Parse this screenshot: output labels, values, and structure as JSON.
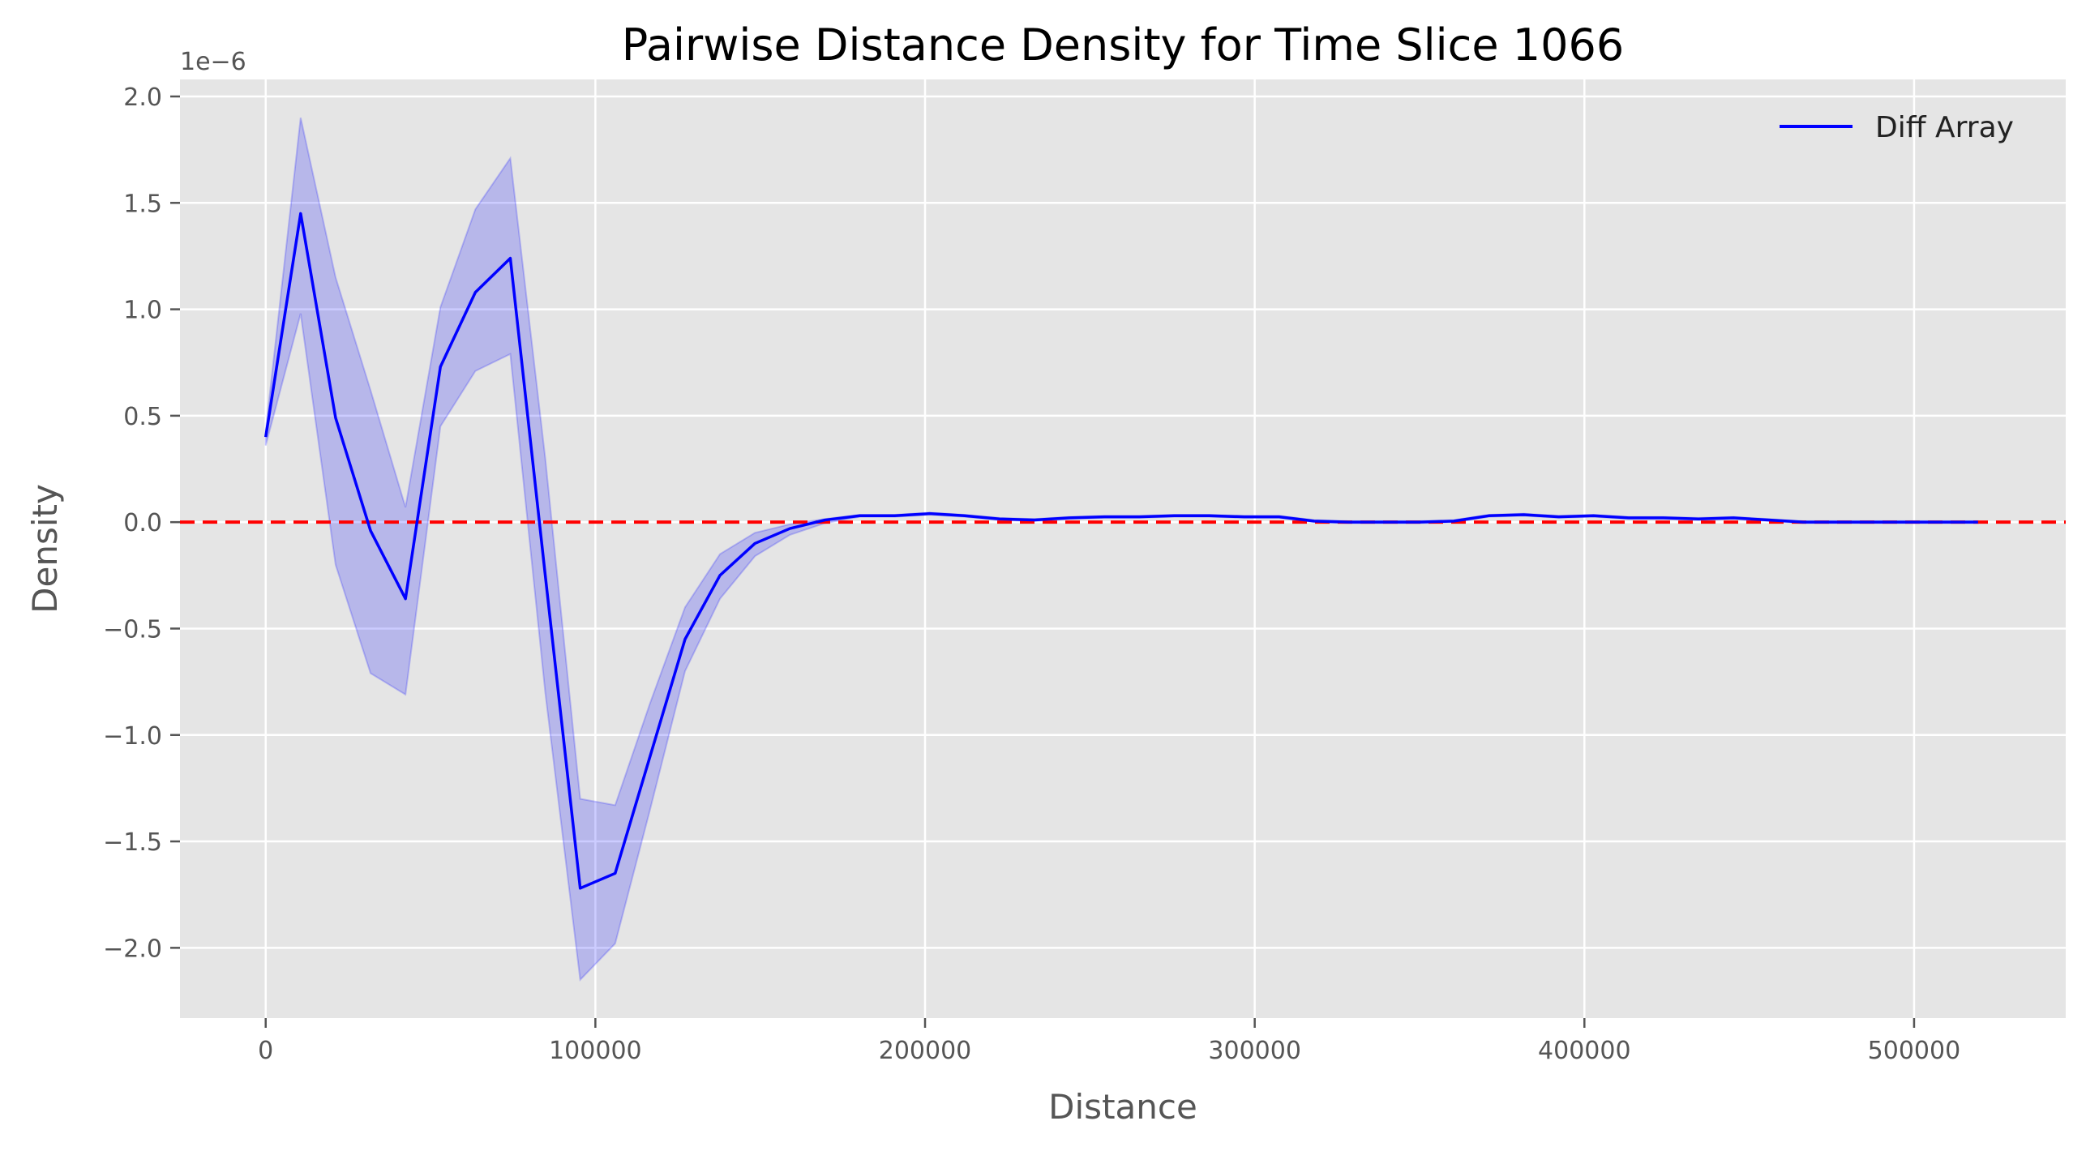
{
  "chart_data": {
    "type": "line",
    "title": "Pairwise Distance Density for Time Slice 1066",
    "xlabel": "Distance",
    "ylabel": "Density",
    "y_offset_label": "1e−6",
    "xlim": [
      -26000,
      546000
    ],
    "ylim": [
      -2.33,
      2.08
    ],
    "x_ticks": [
      0,
      100000,
      200000,
      300000,
      400000,
      500000
    ],
    "x_tick_labels": [
      "0",
      "100000",
      "200000",
      "300000",
      "400000",
      "500000"
    ],
    "y_ticks": [
      2.0,
      1.5,
      1.0,
      0.5,
      0.0,
      -0.5,
      -1.0,
      -1.5,
      -2.0
    ],
    "y_tick_labels": [
      "2.0",
      "1.5",
      "1.0",
      "0.5",
      "0.0",
      "−0.5",
      "−1.0",
      "−1.5",
      "−2.0"
    ],
    "grid": true,
    "legend": {
      "position": "top-right",
      "entries": [
        "Diff Array"
      ]
    },
    "reference_line": {
      "y": 0,
      "style": "dashed",
      "color": "#ff0000"
    },
    "series": [
      {
        "name": "Diff Array",
        "color": "#0000ff",
        "x": [
          0,
          10600,
          21200,
          31800,
          42400,
          53000,
          63600,
          74200,
          84800,
          95400,
          106000,
          116600,
          127200,
          137800,
          148400,
          159000,
          169600,
          180200,
          190800,
          201400,
          212000,
          222600,
          233200,
          243800,
          254400,
          265000,
          275600,
          286200,
          296800,
          307400,
          318000,
          328600,
          339200,
          349800,
          360400,
          371000,
          381600,
          392200,
          402800,
          413400,
          424000,
          434600,
          445200,
          455800,
          466400,
          477000,
          487600,
          498200,
          508800,
          519400
        ],
        "y": [
          0.4,
          1.45,
          0.49,
          -0.04,
          -0.36,
          0.73,
          1.08,
          1.24,
          -0.25,
          -1.72,
          -1.65,
          -1.1,
          -0.55,
          -0.25,
          -0.1,
          -0.03,
          0.01,
          0.03,
          0.03,
          0.04,
          0.03,
          0.015,
          0.01,
          0.02,
          0.025,
          0.025,
          0.03,
          0.03,
          0.025,
          0.025,
          0.005,
          0.0,
          0.0,
          0.0,
          0.005,
          0.03,
          0.035,
          0.025,
          0.03,
          0.02,
          0.02,
          0.015,
          0.02,
          0.01,
          0.0,
          0.0,
          0.0,
          0.0,
          0.0,
          0.0
        ],
        "band_upper": [
          0.43,
          1.9,
          1.15,
          0.62,
          0.07,
          1.01,
          1.47,
          1.71,
          0.3,
          -1.3,
          -1.33,
          -0.85,
          -0.4,
          -0.15,
          -0.05,
          -0.01,
          0.015,
          0.035,
          0.035,
          0.045,
          0.035,
          0.02,
          0.015,
          0.025,
          0.03,
          0.03,
          0.035,
          0.035,
          0.03,
          0.03,
          0.01,
          0.005,
          0.005,
          0.005,
          0.01,
          0.035,
          0.04,
          0.03,
          0.035,
          0.025,
          0.025,
          0.02,
          0.025,
          0.015,
          0.005,
          0.005,
          0.005,
          0.005,
          0.005,
          0.005
        ],
        "band_lower": [
          0.36,
          0.98,
          -0.2,
          -0.71,
          -0.81,
          0.45,
          0.71,
          0.79,
          -0.8,
          -2.15,
          -1.98,
          -1.35,
          -0.7,
          -0.36,
          -0.16,
          -0.06,
          -0.005,
          0.025,
          0.025,
          0.035,
          0.025,
          0.01,
          0.005,
          0.015,
          0.02,
          0.02,
          0.025,
          0.025,
          0.02,
          0.02,
          0.0,
          -0.005,
          -0.005,
          -0.005,
          0.0,
          0.025,
          0.03,
          0.02,
          0.025,
          0.015,
          0.015,
          0.01,
          0.015,
          0.005,
          -0.005,
          -0.005,
          -0.005,
          -0.005,
          -0.005,
          -0.005
        ]
      }
    ]
  }
}
